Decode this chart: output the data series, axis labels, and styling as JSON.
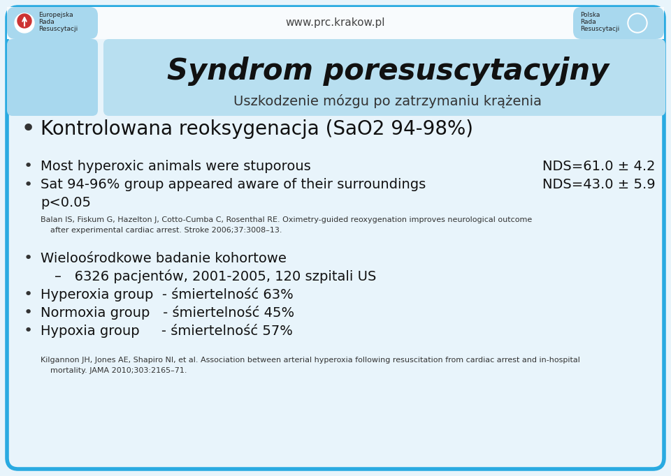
{
  "bg_color": "#e8f4fb",
  "border_color": "#29aae1",
  "header_bg": "#a8d8ee",
  "title_panel_bg": "#b8dff0",
  "title_main": "Syndrom poresuscytacyjny",
  "title_sub": "Uszkodzenie mózgu po zatrzymaniu krążenia",
  "bullet1": "Kontrolowana reoksygenacja (SaO2 94-98%)",
  "bullet2a": "Most hyperoxic animals were stuporous",
  "bullet2a_right": "NDS=61.0 ± 4.2",
  "bullet2b": "Sat 94-96% group appeared aware of their surroundings",
  "bullet2b_right": "NDS=43.0 ± 5.9",
  "bullet2c": "p<0.05",
  "ref1_line1": "Balan IS, Fiskum G, Hazelton J, Cotto-Cumba C, Rosenthal RE. Oximetry-guided reoxygenation improves neurological outcome",
  "ref1_line2": "    after experimental cardiac arrest. Stroke 2006;37:3008–13.",
  "bullet3": "Wieloośrodkowe badanie kohortowe",
  "sub_bullet3": "–   6326 pacjentów, 2001-2005, 120 szpitali US",
  "bullet4": "Hyperoxia group  - śmiertelność 63%",
  "bullet5": "Normoxia group   - śmiertelność 45%",
  "bullet6": "Hypoxia group     - śmiertelność 57%",
  "ref2_line1": "Kilgannon JH, Jones AE, Shapiro NI, et al. Association between arterial hyperoxia following resuscitation from cardiac arrest and in-hospital",
  "ref2_line2": "    mortality. JAMA 2010;303:2165–71.",
  "url": "www.prc.krakow.pl",
  "left_logo_line1": "Europejska",
  "left_logo_line2": "Rada",
  "left_logo_line3": "Resuscytacji",
  "right_logo_line1": "Polska",
  "right_logo_line2": "Rada",
  "right_logo_line3": "Resuscytacji"
}
